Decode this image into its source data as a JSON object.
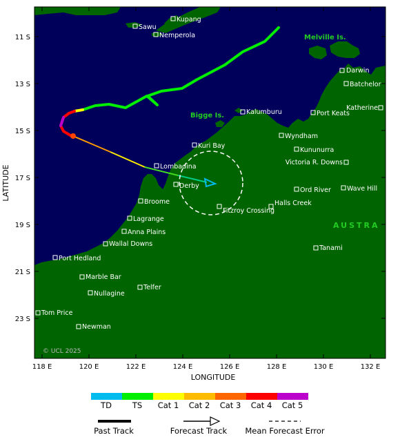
{
  "map": {
    "xlabel": "LONGITUDE",
    "ylabel": "LATITUDE",
    "x_ticks": [
      "118 E",
      "120 E",
      "122 E",
      "124 E",
      "126 E",
      "128 E",
      "130 E",
      "132 E"
    ],
    "y_ticks": [
      "11 S",
      "13 S",
      "15 S",
      "17 S",
      "19 S",
      "21 S",
      "23 S"
    ],
    "copyright": "© UCL 2025",
    "colors": {
      "ocean": "#00005a",
      "land": "#006400",
      "label_green": "#22cc22"
    }
  },
  "places": [
    {
      "name": "Kupang"
    },
    {
      "name": "Sawu"
    },
    {
      "name": "Nemperola"
    },
    {
      "name": "Darwin"
    },
    {
      "name": "Batchelor"
    },
    {
      "name": "Katherine"
    },
    {
      "name": "Kalumburu"
    },
    {
      "name": "Port Keats"
    },
    {
      "name": "Wyndham"
    },
    {
      "name": "Kuri Bay"
    },
    {
      "name": "Kununurra"
    },
    {
      "name": "Lombadina"
    },
    {
      "name": "Victoria R. Downs"
    },
    {
      "name": "Derby"
    },
    {
      "name": "Ord River"
    },
    {
      "name": "Wave Hill"
    },
    {
      "name": "Broome"
    },
    {
      "name": "Halls Creek"
    },
    {
      "name": "Fitzroy Crossing"
    },
    {
      "name": "Lagrange"
    },
    {
      "name": "Anna Plains"
    },
    {
      "name": "Wallal Downs"
    },
    {
      "name": "Tanami"
    },
    {
      "name": "Port Hedland"
    },
    {
      "name": "Marble Bar"
    },
    {
      "name": "Telfer"
    },
    {
      "name": "Nullagine"
    },
    {
      "name": "Tom Price"
    },
    {
      "name": "Newman"
    }
  ],
  "features": [
    {
      "name": "Melville Is."
    },
    {
      "name": "Bigge Is."
    },
    {
      "name": "AUSTRA"
    }
  ],
  "track": {
    "past_segments": [
      {
        "category": "TS",
        "color": "#00ee00"
      },
      {
        "category": "Cat 1",
        "color": "#ffff00"
      },
      {
        "category": "Cat 4",
        "color": "#ff0000"
      },
      {
        "category": "Cat 5",
        "color": "#bb00cc"
      }
    ],
    "forecast": {
      "category": "TD",
      "color": "#00bbee"
    }
  },
  "legend": {
    "categories": [
      {
        "label": "TD",
        "color": "#00bbee"
      },
      {
        "label": "TS",
        "color": "#00ee00"
      },
      {
        "label": "Cat 1",
        "color": "#ffff00"
      },
      {
        "label": "Cat 2",
        "color": "#ffbb00"
      },
      {
        "label": "Cat 3",
        "color": "#ff6600"
      },
      {
        "label": "Cat 4",
        "color": "#ff0000"
      },
      {
        "label": "Cat 5",
        "color": "#bb00cc"
      }
    ],
    "past_track": "Past Track",
    "forecast_track": "Forecast Track",
    "mean_error": "Mean Forecast Error"
  }
}
